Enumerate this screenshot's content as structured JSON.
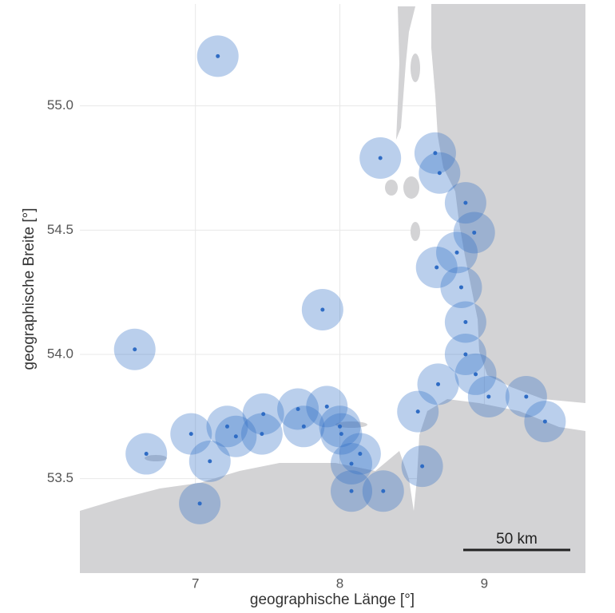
{
  "chart_data": {
    "type": "scatter",
    "x_label": "geographische Länge [°]",
    "y_label": "geographische Breite [°]",
    "x": [
      7.155,
      8.28,
      8.66,
      8.69,
      8.87,
      8.93,
      8.81,
      8.67,
      8.84,
      8.87,
      8.87,
      8.94,
      9.03,
      9.29,
      9.42,
      8.68,
      8.54,
      8.57,
      7.88,
      6.58,
      6.66,
      6.97,
      7.03,
      7.1,
      7.22,
      7.28,
      7.47,
      7.46,
      7.71,
      7.75,
      7.91,
      8.0,
      8.01,
      8.14,
      8.08,
      8.08,
      8.3
    ],
    "values": [
      55.2,
      54.79,
      54.81,
      54.73,
      54.61,
      54.49,
      54.41,
      54.35,
      54.27,
      54.13,
      54.0,
      53.92,
      53.83,
      53.83,
      53.73,
      53.88,
      53.77,
      53.55,
      54.18,
      54.02,
      53.6,
      53.68,
      53.4,
      53.57,
      53.71,
      53.67,
      53.76,
      53.68,
      53.78,
      53.71,
      53.79,
      53.71,
      53.68,
      53.6,
      53.56,
      53.45,
      53.45
    ],
    "color": "#2f6cc4",
    "xlim": [
      6.2,
      9.7
    ],
    "ylim": [
      53.12,
      55.41
    ],
    "xticks": [
      7,
      8,
      9
    ],
    "yticks": [
      53.5,
      {
        "value": 54,
        "label": "54.0"
      },
      54.5,
      {
        "value": 55,
        "label": "55.0"
      }
    ],
    "grid": true,
    "scale_bar_label": "50 km"
  }
}
